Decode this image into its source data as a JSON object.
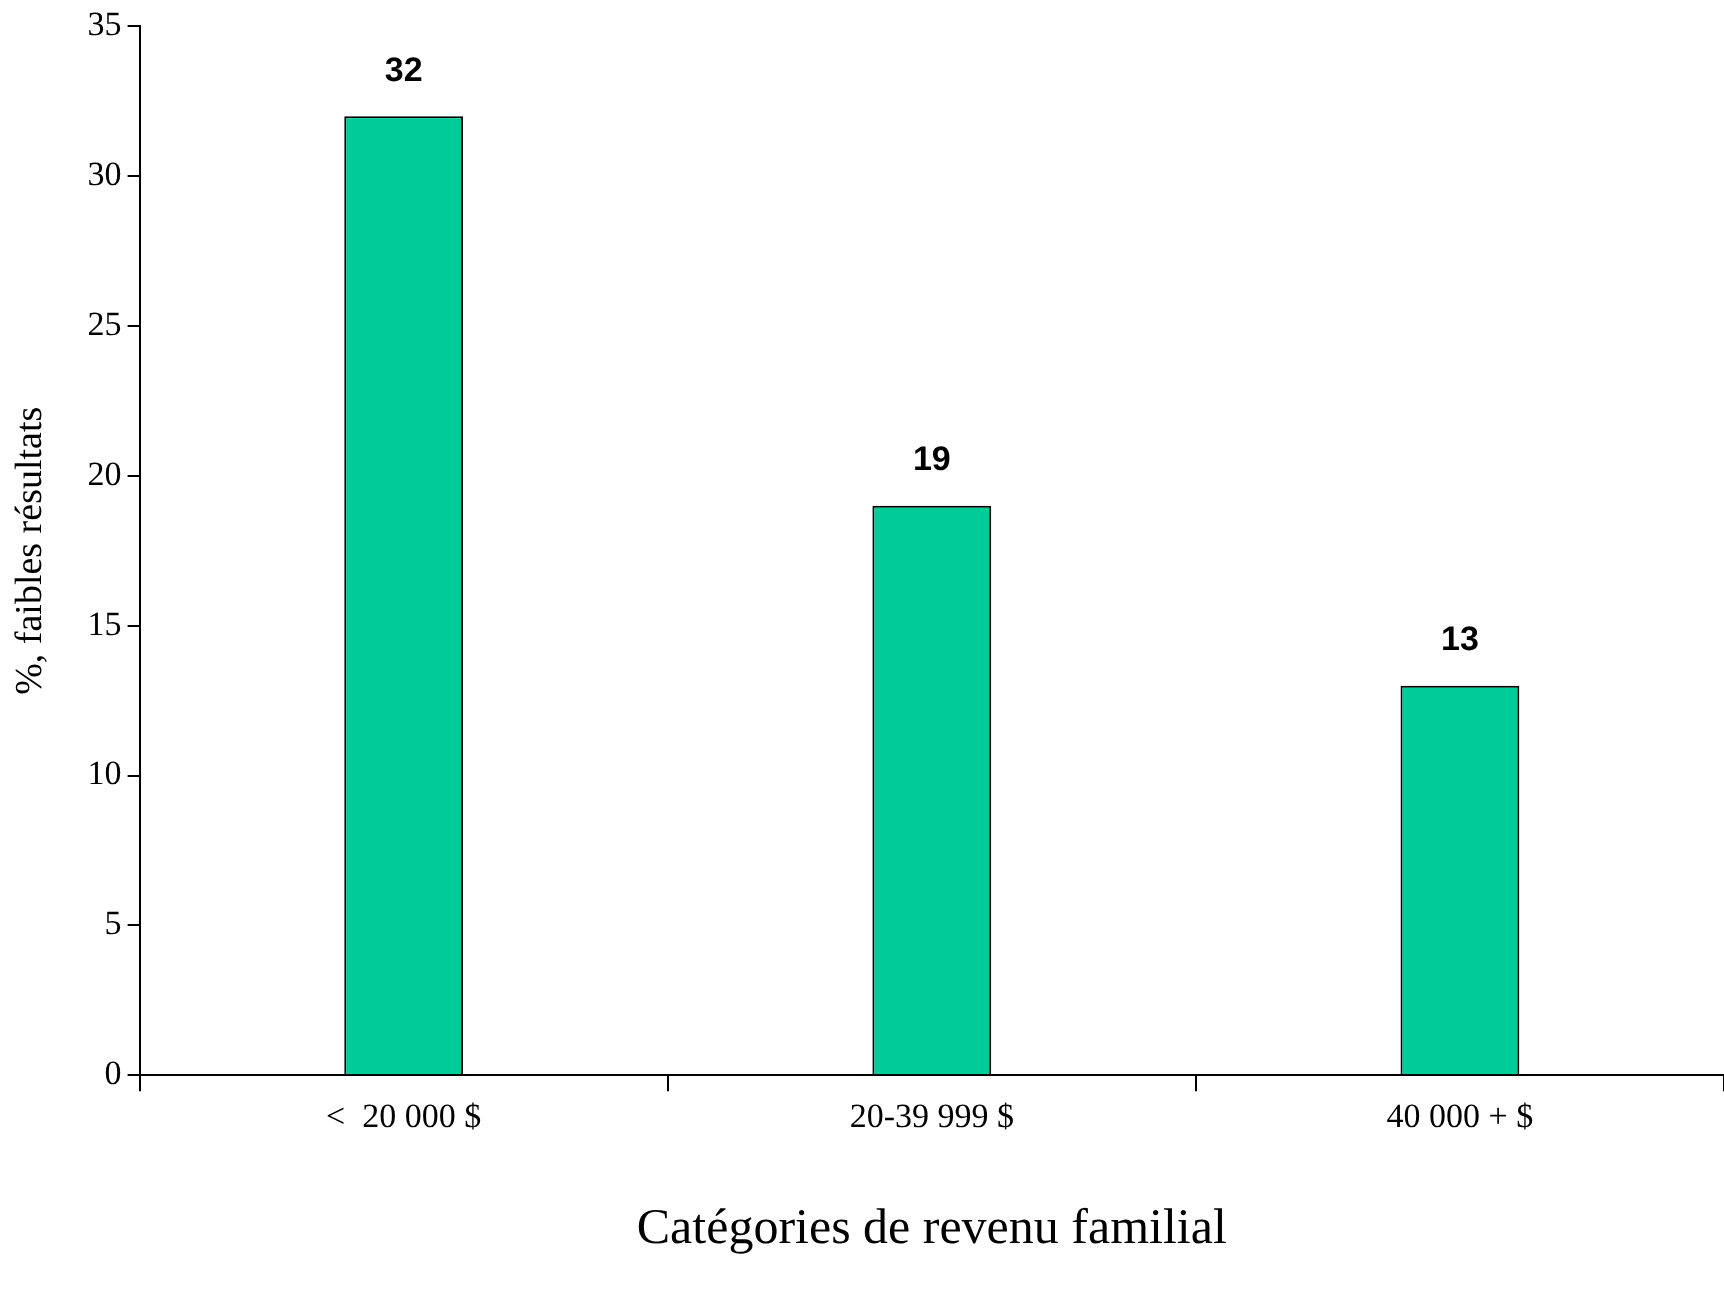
{
  "chart_data": {
    "type": "bar",
    "xlabel": "Catégories de revenu familial",
    "ylabel": "%, faibles résultats",
    "categories": [
      "<  20 000 $",
      "20-39 999 $",
      "40 000 + $"
    ],
    "values": [
      32,
      19,
      13
    ],
    "color": "#00cc99",
    "ylim": [
      0,
      35
    ],
    "yticks": [
      0,
      5,
      10,
      15,
      20,
      25,
      30,
      35
    ],
    "grid": false,
    "legend": false,
    "data_labels": true
  }
}
